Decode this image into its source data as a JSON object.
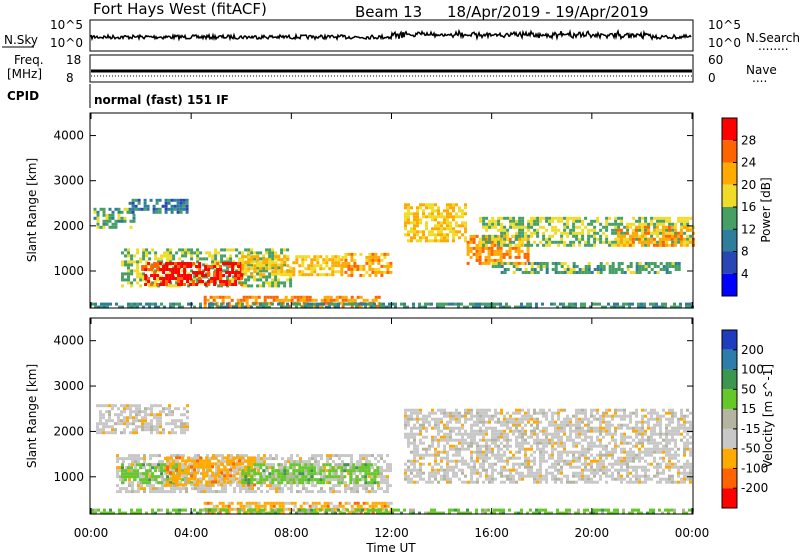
{
  "header": {
    "station": "Fort Hays West (fitACF)",
    "beam": "Beam 13",
    "date_range": "18/Apr/2019 - 19/Apr/2019"
  },
  "strips": {
    "nsky_label": "N.Sky",
    "nsearch_label": "N.Search",
    "nsearch_marker": "........",
    "noise_ticks": [
      "10^5",
      "10^0"
    ],
    "freq_label_top": "Freq.",
    "freq_label_unit": "[MHz]",
    "freq_ticks": [
      "18",
      "8"
    ],
    "nave_label": "Nave",
    "nave_marker": "....",
    "nave_ticks": [
      "60",
      "0"
    ],
    "cpid_label": "CPID",
    "cpid_value": "normal (fast) 151 IF"
  },
  "chart_data": [
    {
      "type": "heatmap",
      "name": "power-panel",
      "ylabel": "Slant Range [km]",
      "xlabel": "Time UT",
      "x_ticks": [
        "00:00",
        "04:00",
        "08:00",
        "12:00",
        "16:00",
        "20:00",
        "00:00"
      ],
      "xlim_hours": [
        0,
        24
      ],
      "ylim": [
        180,
        4500
      ],
      "y_ticks": [
        1000,
        2000,
        3000,
        4000
      ],
      "colorbar": {
        "label": "Power [dB]",
        "ticks": [
          "28",
          "24",
          "20",
          "16",
          "12",
          "8",
          "4"
        ],
        "colors": [
          "#ff0000",
          "#ff6400",
          "#ffaa00",
          "#f0dc28",
          "#46a064",
          "#2d7d9b",
          "#2846b4",
          "#0000ff"
        ]
      },
      "regions": [
        {
          "t0": 0.1,
          "t1": 1.7,
          "r0": 1950,
          "r1": 2400,
          "level": 12
        },
        {
          "t0": 1.5,
          "t1": 3.8,
          "r0": 2300,
          "r1": 2600,
          "level": 8
        },
        {
          "t0": 1.2,
          "t1": 8.0,
          "r0": 700,
          "r1": 1500,
          "level": 14
        },
        {
          "t0": 2.0,
          "t1": 6.0,
          "r0": 700,
          "r1": 1200,
          "level": 28
        },
        {
          "t0": 6.0,
          "t1": 10.0,
          "r0": 900,
          "r1": 1350,
          "level": 18
        },
        {
          "t0": 10.0,
          "t1": 12.0,
          "r0": 900,
          "r1": 1400,
          "level": 20
        },
        {
          "t0": 4.5,
          "t1": 11.5,
          "r0": 250,
          "r1": 450,
          "level": 22
        },
        {
          "t0": 12.5,
          "t1": 15.0,
          "r0": 1700,
          "r1": 2500,
          "level": 18
        },
        {
          "t0": 15.0,
          "t1": 17.5,
          "r0": 1200,
          "r1": 1800,
          "level": 22
        },
        {
          "t0": 15.5,
          "t1": 24.0,
          "r0": 1600,
          "r1": 2200,
          "level": 14
        },
        {
          "t0": 16.0,
          "t1": 23.5,
          "r0": 950,
          "r1": 1200,
          "level": 12
        },
        {
          "t0": 21.0,
          "t1": 24.0,
          "r0": 1600,
          "r1": 2000,
          "level": 20
        },
        {
          "t0": 0.0,
          "t1": 24.0,
          "r0": 180,
          "r1": 300,
          "level": 10
        }
      ]
    },
    {
      "type": "heatmap",
      "name": "velocity-panel",
      "ylabel": "Slant Range [km]",
      "xlabel": "Time UT",
      "x_ticks": [
        "00:00",
        "04:00",
        "08:00",
        "12:00",
        "16:00",
        "20:00",
        "00:00"
      ],
      "xlim_hours": [
        0,
        24
      ],
      "ylim": [
        180,
        4500
      ],
      "y_ticks": [
        1000,
        2000,
        3000,
        4000
      ],
      "colorbar": {
        "label": "Velocity [m s^-1]",
        "ticks": [
          "200",
          "100",
          "50",
          "15",
          "-15",
          "-50",
          "-100",
          "-200"
        ],
        "colors": [
          "#1e3cbe",
          "#2d7daa",
          "#3c9650",
          "#64c828",
          "#b4b4a0",
          "#c8c8c8",
          "#ffaa00",
          "#ff6400",
          "#ff0000"
        ]
      },
      "regions": [
        {
          "t0": 0.2,
          "t1": 3.8,
          "r0": 1950,
          "r1": 2600,
          "class": "-15"
        },
        {
          "t0": 1.0,
          "t1": 12.0,
          "r0": 700,
          "r1": 1500,
          "class": "-15"
        },
        {
          "t0": 1.2,
          "t1": 4.0,
          "r0": 850,
          "r1": 1300,
          "class": "15"
        },
        {
          "t0": 3.0,
          "t1": 6.5,
          "r0": 800,
          "r1": 1450,
          "class": "-50"
        },
        {
          "t0": 6.0,
          "t1": 11.5,
          "r0": 900,
          "r1": 1300,
          "class": "15"
        },
        {
          "t0": 4.5,
          "t1": 12.0,
          "r0": 200,
          "r1": 450,
          "class": "-50"
        },
        {
          "t0": 12.5,
          "t1": 24.0,
          "r0": 900,
          "r1": 2500,
          "class": "-15"
        },
        {
          "t0": 0.0,
          "t1": 24.0,
          "r0": 180,
          "r1": 300,
          "class": "15"
        }
      ]
    }
  ]
}
